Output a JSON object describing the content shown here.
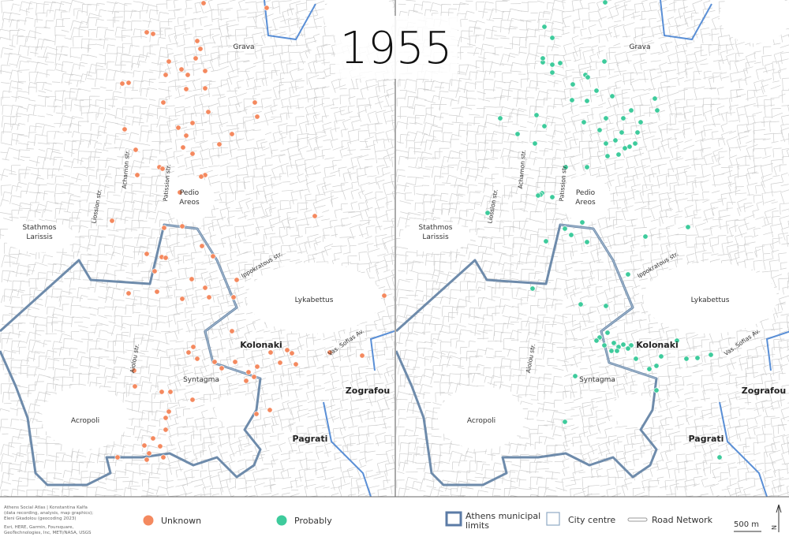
{
  "title": "1955",
  "places": [
    [
      "Grava"
    ],
    [
      "Pedio",
      "Areos"
    ],
    [
      "Stathmos",
      "Larissis"
    ],
    [
      "Lykabettus"
    ],
    [
      "Kolonaki"
    ],
    [
      "Syntagma"
    ],
    [
      "Acropoli"
    ],
    [
      "Pagrati"
    ],
    [
      "Zografou"
    ]
  ],
  "streets": [
    "Liossion str.",
    "Acharnon str.",
    "Patission str.",
    "Ippokratous str.",
    "Aiolou str.",
    "Vas. Sofias Av."
  ],
  "credits": [
    "Athens Social Atlas | Konstantina Kalfa",
    "(data recording, analysis, map graphics);",
    "Eleni Gkadolou (geocoding 2023)",
    "Esri, HERE, Garmin, Foursquare,",
    "GeoTechnologies, Inc, METI/NASA, USGS"
  ],
  "legend": {
    "unknown": "Unknown",
    "probably": "Probably",
    "municipal": [
      "Athens municipal",
      "limits"
    ],
    "centre": "City centre",
    "roads": "Road Network",
    "scale": "500 m",
    "north": "N"
  }
}
